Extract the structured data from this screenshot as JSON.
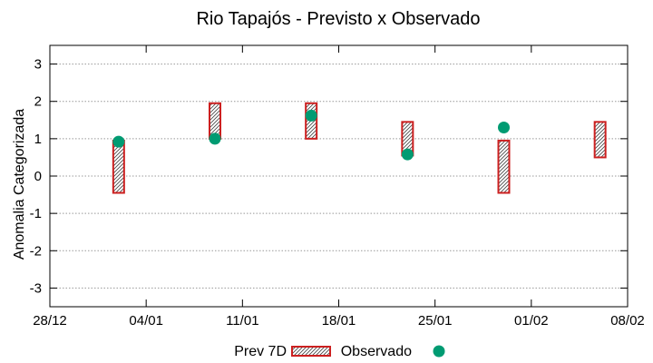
{
  "chart_data": {
    "type": "range-bar-with-points",
    "title": "Rio Tapajós - Previsto x Observado",
    "ylabel": "Anomalia Categorizada",
    "xlabel": "",
    "ylim": [
      -3.5,
      3.5
    ],
    "yticks": [
      -3,
      -2,
      -1,
      0,
      1,
      2,
      3
    ],
    "ytick_labels": [
      "-3",
      "-2",
      "-1",
      "0",
      "1",
      "2",
      "3"
    ],
    "xlim_days": [
      0,
      42
    ],
    "xticks": [
      {
        "day": 0,
        "label": "28/12"
      },
      {
        "day": 7,
        "label": "04/01"
      },
      {
        "day": 14,
        "label": "11/01"
      },
      {
        "day": 21,
        "label": "18/01"
      },
      {
        "day": 28,
        "label": "25/01"
      },
      {
        "day": 35,
        "label": "01/02"
      },
      {
        "day": 42,
        "label": "08/02"
      }
    ],
    "grid": "horizontal-dotted",
    "legend_position": "bottom-center",
    "series": [
      {
        "name": "Prev 7D",
        "kind": "range-bar",
        "style": "hatched",
        "color": "#cc2020",
        "points": [
          {
            "day": 5,
            "low": -0.45,
            "high": 0.95
          },
          {
            "day": 12,
            "low": 1.0,
            "high": 1.95
          },
          {
            "day": 19,
            "low": 1.0,
            "high": 1.95
          },
          {
            "day": 26,
            "low": 0.55,
            "high": 1.45
          },
          {
            "day": 33,
            "low": -0.45,
            "high": 0.95
          },
          {
            "day": 40,
            "low": 0.5,
            "high": 1.45
          }
        ]
      },
      {
        "name": "Observado",
        "kind": "point",
        "color": "#009b72",
        "points": [
          {
            "day": 5,
            "value": 0.92
          },
          {
            "day": 12,
            "value": 1.0
          },
          {
            "day": 19,
            "value": 1.62
          },
          {
            "day": 26,
            "value": 0.58
          },
          {
            "day": 33,
            "value": 1.3
          }
        ]
      }
    ]
  }
}
